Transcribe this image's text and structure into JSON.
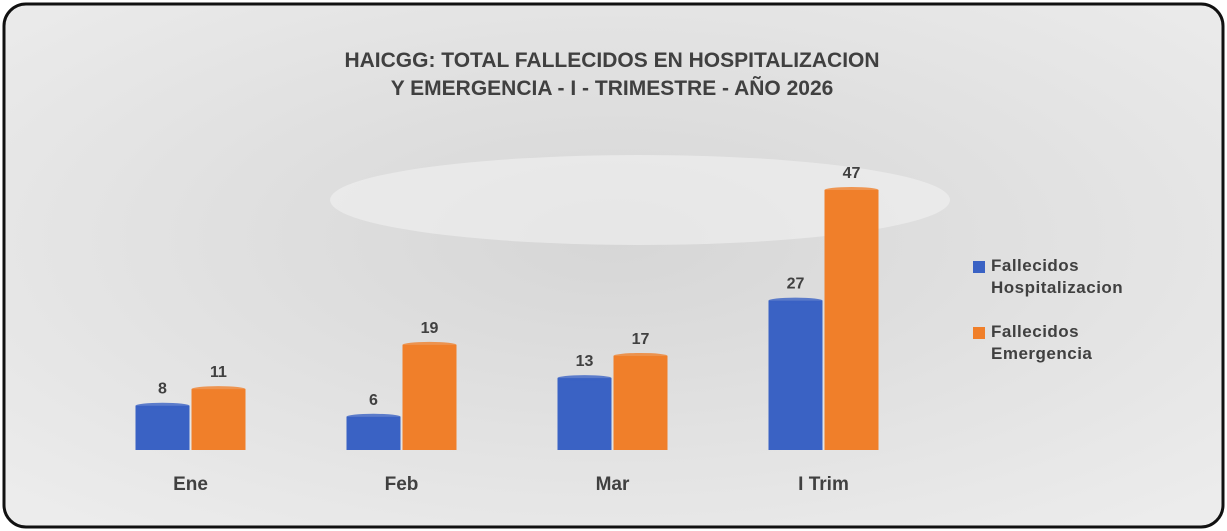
{
  "chart_data": {
    "type": "bar",
    "title": [
      "HAICGG: TOTAL FALLECIDOS EN HOSPITALIZACION",
      "Y EMERGENCIA - I - TRIMESTRE - AÑO 2026"
    ],
    "categories": [
      "Ene",
      "Feb",
      "Mar",
      "I Trim"
    ],
    "series": [
      {
        "name": "Fallecidos Hospitalizacion",
        "color": "#3a62c4",
        "values": [
          8,
          6,
          13,
          27
        ]
      },
      {
        "name": "Fallecidos Emergencia",
        "color": "#f07f2a",
        "values": [
          11,
          19,
          17,
          47
        ]
      }
    ],
    "legend": "right"
  }
}
